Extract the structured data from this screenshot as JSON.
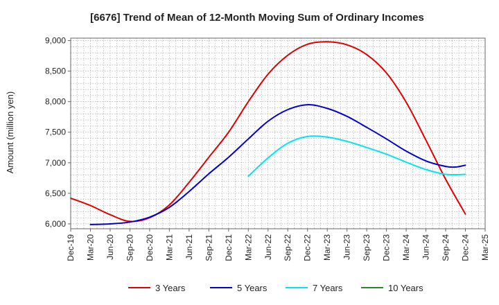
{
  "chart_data": {
    "type": "line",
    "title": "[6676]  Trend of Mean of 12-Month Moving Sum of Ordinary Incomes",
    "xlabel": "",
    "ylabel": "Amount (million yen)",
    "ylim": [
      5920,
      9040
    ],
    "yticks": [
      6000,
      6500,
      7000,
      7500,
      8000,
      8500,
      9000
    ],
    "ytick_labels": [
      "6,000",
      "6,500",
      "7,000",
      "7,500",
      "8,000",
      "8,500",
      "9,000"
    ],
    "x_months": [
      0,
      3,
      6,
      9,
      12,
      15,
      18,
      21,
      24,
      27,
      30,
      33,
      36,
      39,
      42,
      45,
      48,
      51,
      54,
      57,
      60,
      63
    ],
    "categories": [
      "Dec-19",
      "Mar-20",
      "Jun-20",
      "Sep-20",
      "Dec-20",
      "Mar-21",
      "Jun-21",
      "Sep-21",
      "Dec-21",
      "Mar-22",
      "Jun-22",
      "Sep-22",
      "Dec-22",
      "Mar-23",
      "Jun-23",
      "Sep-23",
      "Dec-23",
      "Mar-24",
      "Jun-24",
      "Sep-24",
      "Dec-24",
      "Mar-25"
    ],
    "grid": true,
    "legend_position": "bottom",
    "series": [
      {
        "name": "3 Years",
        "color": "#e00000",
        "x": [
          0,
          3,
          6,
          9,
          12,
          15,
          18,
          21,
          24,
          27,
          30,
          33,
          36,
          39,
          42,
          45,
          48,
          51,
          54,
          57,
          60
        ],
        "values": [
          6420,
          6300,
          6150,
          6040,
          6100,
          6310,
          6680,
          7090,
          7500,
          8000,
          8450,
          8760,
          8940,
          8980,
          8930,
          8770,
          8470,
          7990,
          7370,
          6730,
          6160
        ]
      },
      {
        "name": "5 Years",
        "color": "#0000cc",
        "x": [
          3,
          6,
          9,
          12,
          15,
          18,
          21,
          24,
          27,
          30,
          33,
          36,
          39,
          42,
          45,
          48,
          51,
          54,
          57,
          58.5,
          60
        ],
        "values": [
          5990,
          6000,
          6030,
          6110,
          6270,
          6530,
          6820,
          7090,
          7390,
          7680,
          7870,
          7950,
          7890,
          7760,
          7580,
          7390,
          7190,
          7030,
          6940,
          6930,
          6960
        ]
      },
      {
        "name": "7 Years",
        "color": "#00e5ee",
        "x": [
          27,
          30,
          33,
          36,
          39,
          42,
          45,
          48,
          51,
          54,
          57,
          60
        ],
        "values": [
          6780,
          7080,
          7320,
          7430,
          7420,
          7350,
          7250,
          7140,
          7010,
          6890,
          6810,
          6810
        ]
      },
      {
        "name": "10 Years",
        "color": "#228b22",
        "x": [],
        "values": []
      }
    ]
  }
}
